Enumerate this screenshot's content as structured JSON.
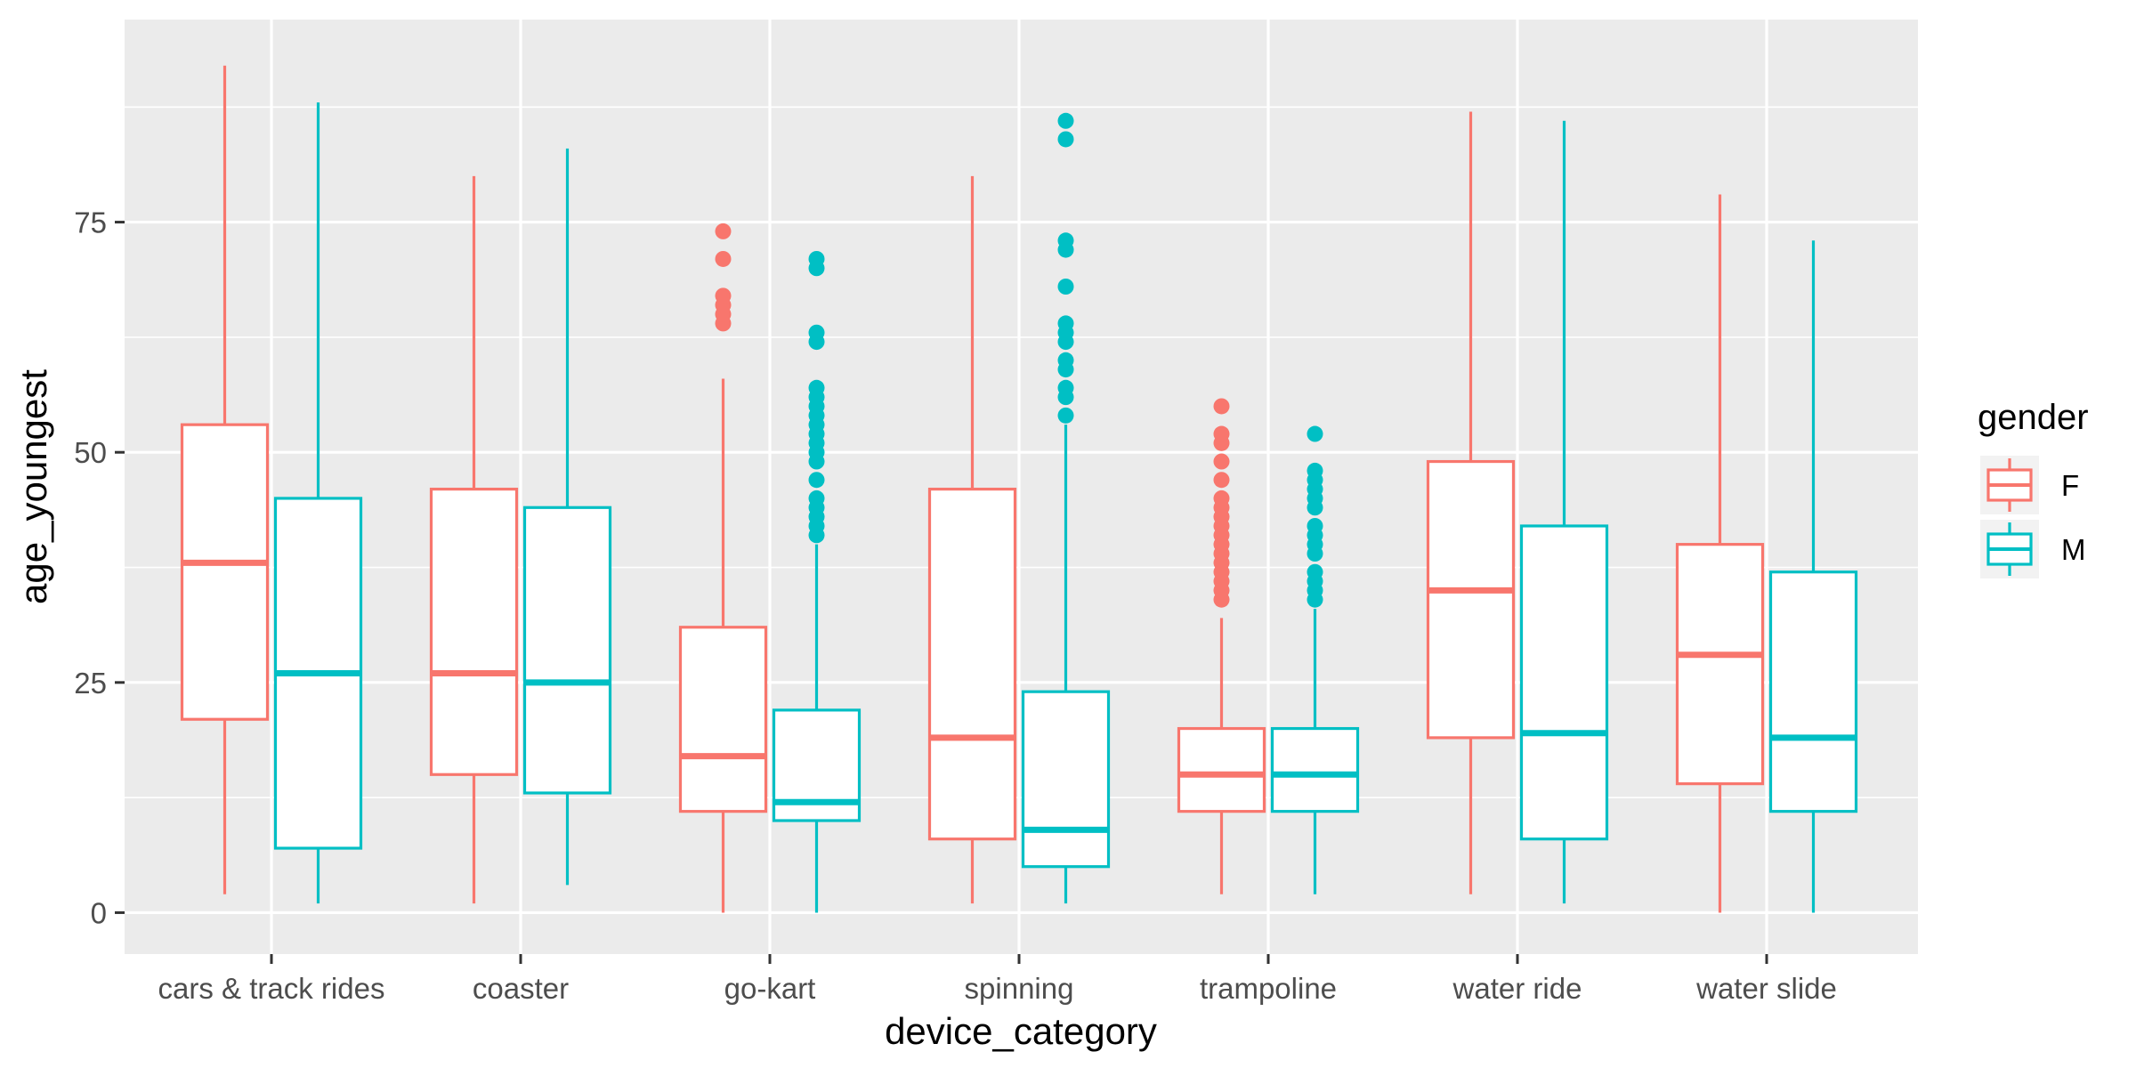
{
  "chart_data": {
    "type": "boxplot",
    "xlabel": "device_category",
    "ylabel": "age_youngest",
    "categories": [
      "cars & track rides",
      "coaster",
      "go-kart",
      "spinning",
      "trampoline",
      "water ride",
      "water slide"
    ],
    "ylim": [
      -4.5,
      97
    ],
    "yticks": [
      0,
      25,
      50,
      75
    ],
    "ytick_labels": [
      "0",
      "25",
      "50",
      "75"
    ],
    "grid": true,
    "legend": {
      "title": "gender",
      "position": "right",
      "entries": [
        {
          "label": "F",
          "color": "#F8766D"
        },
        {
          "label": "M",
          "color": "#00BFC4"
        }
      ]
    },
    "series": [
      {
        "name": "F",
        "color": "#F8766D",
        "boxes": [
          {
            "whisker_low": 2,
            "q1": 21,
            "median": 38,
            "q3": 53,
            "whisker_high": 92,
            "outliers": []
          },
          {
            "whisker_low": 1,
            "q1": 15,
            "median": 26,
            "q3": 46,
            "whisker_high": 80,
            "outliers": []
          },
          {
            "whisker_low": 0,
            "q1": 11,
            "median": 17,
            "q3": 31,
            "whisker_high": 58,
            "outliers": [
              64,
              65,
              66,
              67,
              71,
              74
            ]
          },
          {
            "whisker_low": 1,
            "q1": 8,
            "median": 19,
            "q3": 46,
            "whisker_high": 80,
            "outliers": []
          },
          {
            "whisker_low": 2,
            "q1": 11,
            "median": 15,
            "q3": 20,
            "whisker_high": 32,
            "outliers": [
              34,
              35,
              36,
              37,
              38,
              39,
              40,
              41,
              42,
              43,
              44,
              45,
              47,
              49,
              51,
              52,
              55
            ]
          },
          {
            "whisker_low": 2,
            "q1": 19,
            "median": 35,
            "q3": 49,
            "whisker_high": 87,
            "outliers": []
          },
          {
            "whisker_low": 0,
            "q1": 14,
            "median": 28,
            "q3": 40,
            "whisker_high": 78,
            "outliers": []
          }
        ]
      },
      {
        "name": "M",
        "color": "#00BFC4",
        "boxes": [
          {
            "whisker_low": 1,
            "q1": 7,
            "median": 26,
            "q3": 45,
            "whisker_high": 88,
            "outliers": []
          },
          {
            "whisker_low": 3,
            "q1": 13,
            "median": 25,
            "q3": 44,
            "whisker_high": 83,
            "outliers": []
          },
          {
            "whisker_low": 0,
            "q1": 10,
            "median": 12,
            "q3": 22,
            "whisker_high": 40,
            "outliers": [
              41,
              42,
              43,
              44,
              45,
              47,
              49,
              50,
              51,
              52,
              53,
              54,
              55,
              56,
              57,
              62,
              63,
              70,
              71
            ]
          },
          {
            "whisker_low": 1,
            "q1": 5,
            "median": 9,
            "q3": 24,
            "whisker_high": 53,
            "outliers": [
              54,
              56,
              57,
              59,
              60,
              62,
              63,
              64,
              68,
              72,
              73,
              84,
              86
            ]
          },
          {
            "whisker_low": 2,
            "q1": 11,
            "median": 15,
            "q3": 20,
            "whisker_high": 33,
            "outliers": [
              34,
              35,
              36,
              37,
              39,
              40,
              41,
              42,
              44,
              45,
              46,
              47,
              48,
              52
            ]
          },
          {
            "whisker_low": 1,
            "q1": 8,
            "median": 19.5,
            "q3": 42,
            "whisker_high": 86,
            "outliers": []
          },
          {
            "whisker_low": 0,
            "q1": 11,
            "median": 19,
            "q3": 37,
            "whisker_high": 73,
            "outliers": []
          }
        ]
      }
    ]
  }
}
